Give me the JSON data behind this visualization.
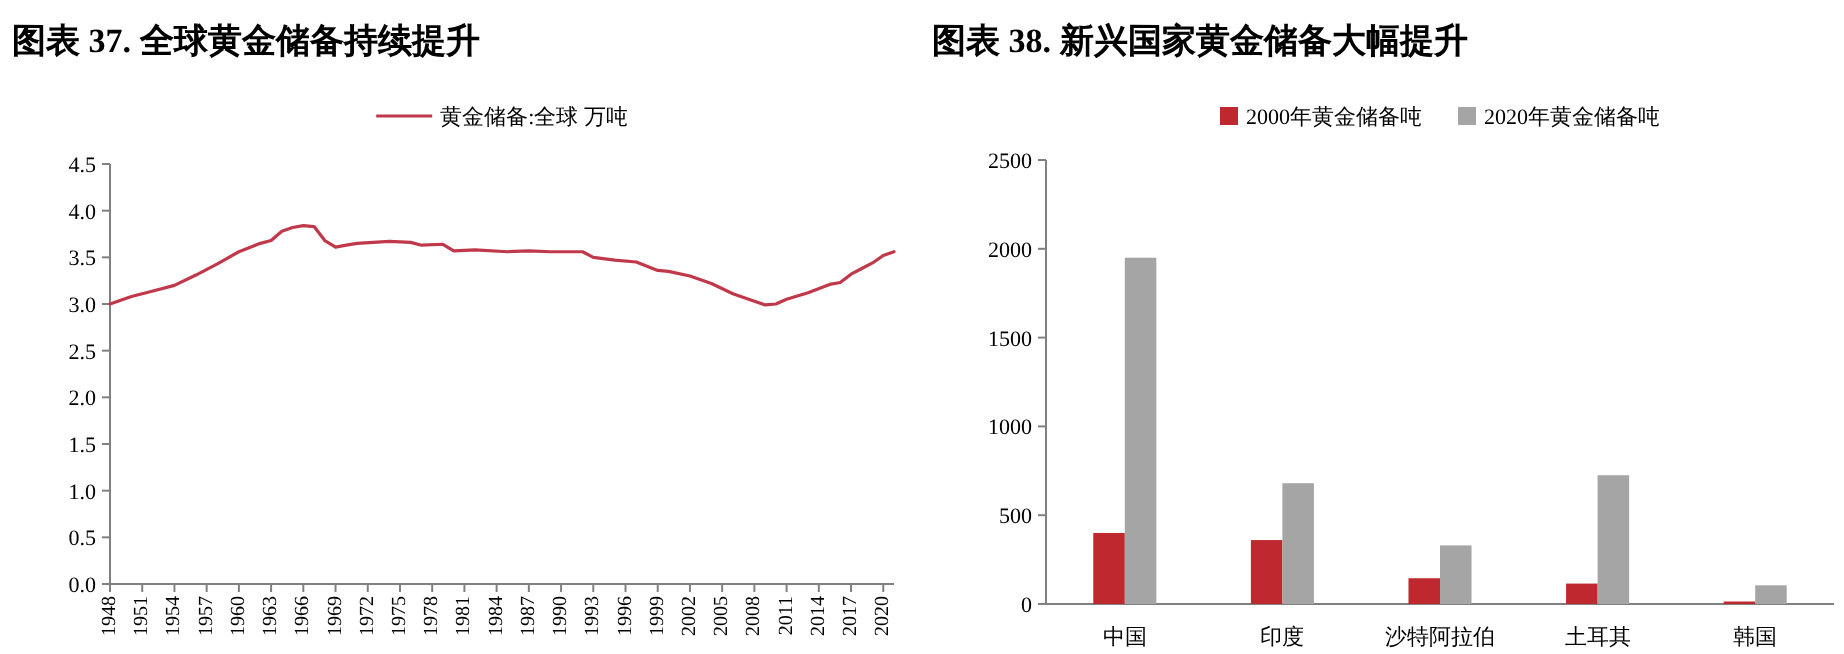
{
  "chart_data": [
    {
      "type": "line",
      "title": "图表 37. 全球黄金储备持续提升",
      "legend": "top",
      "xlim": [
        1948,
        2021
      ],
      "xticks": [
        1948,
        1951,
        1954,
        1957,
        1960,
        1963,
        1966,
        1969,
        1972,
        1975,
        1978,
        1981,
        1984,
        1987,
        1990,
        1993,
        1996,
        1999,
        2002,
        2005,
        2008,
        2011,
        2014,
        2017,
        2020
      ],
      "ylim": [
        0,
        4.5
      ],
      "yticks": [
        {
          "value": 0,
          "label": "0.0"
        },
        {
          "value": 0.5,
          "label": "0.5"
        },
        {
          "value": 1,
          "label": "1.0"
        },
        {
          "value": 1.5,
          "label": "1.5"
        },
        {
          "value": 2,
          "label": "2.0"
        },
        {
          "value": 2.5,
          "label": "2.5"
        },
        {
          "value": 3,
          "label": "3.0"
        },
        {
          "value": 3.5,
          "label": "3.5"
        },
        {
          "value": 4,
          "label": "4.0"
        },
        {
          "value": 4.5,
          "label": "4.5"
        }
      ],
      "series": [
        {
          "name": "黄金储备:全球 万吨",
          "color": "#c0394a",
          "x": [
            1948,
            1950,
            1952,
            1954,
            1956,
            1958,
            1960,
            1962,
            1963,
            1964,
            1965,
            1966,
            1967,
            1968,
            1969,
            1970,
            1971,
            1974,
            1976,
            1977,
            1979,
            1980,
            1982,
            1985,
            1987,
            1989,
            1992,
            1993,
            1995,
            1997,
            1999,
            2000,
            2002,
            2004,
            2006,
            2008,
            2009,
            2010,
            2011,
            2013,
            2015,
            2016,
            2017,
            2018,
            2019,
            2020,
            2021
          ],
          "values": [
            3.0,
            3.08,
            3.14,
            3.2,
            3.31,
            3.43,
            3.56,
            3.65,
            3.68,
            3.78,
            3.82,
            3.84,
            3.83,
            3.68,
            3.61,
            3.63,
            3.65,
            3.67,
            3.66,
            3.63,
            3.64,
            3.57,
            3.58,
            3.56,
            3.57,
            3.56,
            3.56,
            3.5,
            3.47,
            3.45,
            3.36,
            3.35,
            3.3,
            3.22,
            3.11,
            3.03,
            2.99,
            3.0,
            3.05,
            3.12,
            3.21,
            3.23,
            3.32,
            3.38,
            3.44,
            3.52,
            3.56
          ]
        }
      ]
    },
    {
      "type": "bar",
      "title": "图表 38. 新兴国家黄金储备大幅提升",
      "legend": "top",
      "categories": [
        "中国",
        "印度",
        "沙特阿拉伯",
        "土耳其",
        "韩国"
      ],
      "ylim": [
        0,
        2500
      ],
      "yticks": [
        0,
        500,
        1000,
        1500,
        2000,
        2500
      ],
      "series": [
        {
          "name": "2000年黄金储备吨",
          "color": "#c0282f",
          "values": [
            400,
            360,
            145,
            115,
            14
          ]
        },
        {
          "name": "2020年黄金储备吨",
          "color": "#a5a5a5",
          "values": [
            1950,
            680,
            330,
            725,
            105
          ]
        }
      ]
    }
  ]
}
